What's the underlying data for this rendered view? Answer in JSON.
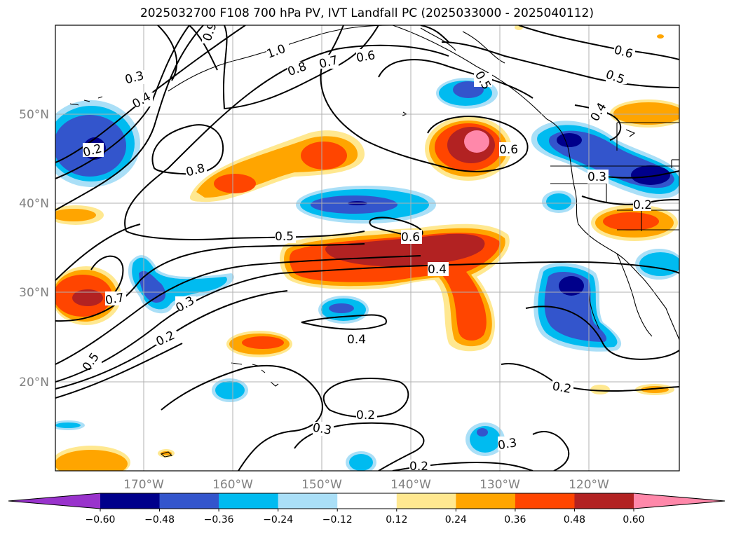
{
  "title": "2025032700 F108 700 hPa PV, IVT Landfall PC (2025033000 - 2025040112)",
  "map": {
    "lon_labels": [
      "170°W",
      "160°W",
      "150°W",
      "140°W",
      "130°W",
      "120°W"
    ],
    "lat_labels": [
      "50°N",
      "40°N",
      "30°N",
      "20°N"
    ],
    "contour_labels": [
      "1.0",
      "0.9",
      "0.8",
      "0.7",
      "0.6",
      "0.3",
      "0.4",
      "0.2",
      "0.8",
      "0.6",
      "0.5",
      "0.4",
      "0.6",
      "0.5",
      "0.7",
      "0.3",
      "0.2",
      "0.5",
      "0.4",
      "0.3",
      "0.2",
      "0.3",
      "0.2",
      "0.2",
      "0.3",
      "0.6",
      "0.4",
      "0.2",
      "0.5"
    ]
  },
  "colorbar": {
    "colors": [
      "#9933cc",
      "#00008b",
      "#3355cc",
      "#00bbf0",
      "#aadff7",
      "#ffffff",
      "#ffe890",
      "#ffa500",
      "#ff4500",
      "#b22222",
      "#ff88aa"
    ],
    "tick_labels": [
      "−0.60",
      "−0.48",
      "−0.36",
      "−0.24",
      "−0.12",
      "0.12",
      "0.24",
      "0.36",
      "0.48",
      "0.60"
    ],
    "extend": "both"
  }
}
